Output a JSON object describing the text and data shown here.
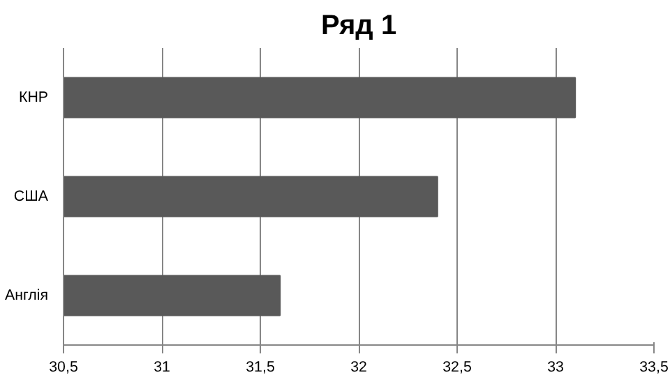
{
  "chart_data": {
    "type": "bar",
    "title": "Ряд 1",
    "orientation": "horizontal",
    "categories": [
      "КНР",
      "США",
      "Англія"
    ],
    "values": [
      33.1,
      32.4,
      31.6
    ],
    "color": "#595959",
    "xlim": [
      30.5,
      33.5
    ],
    "xticks": [
      {
        "value": 30.5,
        "label": "30,5"
      },
      31,
      {
        "value": 31.5,
        "label": "31,5"
      },
      32,
      {
        "value": 32.5,
        "label": "32,5"
      },
      33,
      {
        "value": 33.5,
        "label": "33,5"
      }
    ],
    "grid": "x"
  }
}
